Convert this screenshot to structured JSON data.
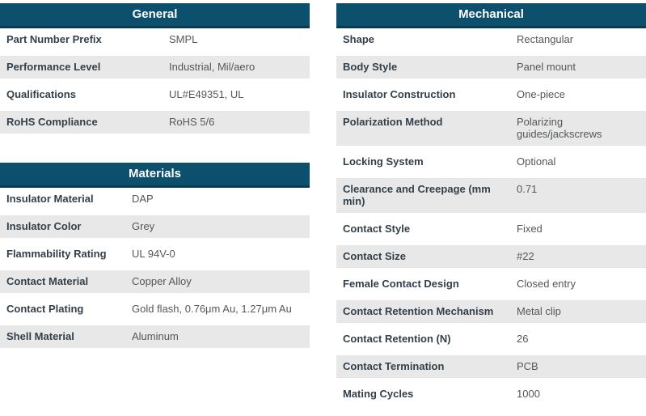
{
  "colors": {
    "header_bg": "#0c506e",
    "header_border": "#083b52",
    "row_stripe": "#e8e8e8",
    "label_text": "#333f49",
    "value_text": "#54575a",
    "header_text": "#ffffff"
  },
  "tables": [
    {
      "title": "General",
      "rows": [
        {
          "label": "Part Number Prefix",
          "value": "SMPL"
        },
        {
          "label": "Performance Level",
          "value": "Industrial, Mil/aero"
        },
        {
          "label": "Qualifications",
          "value": "UL#E49351, UL"
        },
        {
          "label": "RoHS Compliance",
          "value": "RoHS 5/6"
        }
      ]
    },
    {
      "title": "Materials",
      "rows": [
        {
          "label": "Insulator Material",
          "value": "DAP"
        },
        {
          "label": "Insulator Color",
          "value": "Grey"
        },
        {
          "label": "Flammability Rating",
          "value": "UL 94V-0"
        },
        {
          "label": "Contact Material",
          "value": "Copper Alloy"
        },
        {
          "label": "Contact Plating",
          "value": "Gold flash, 0.76μm Au, 1.27μm Au"
        },
        {
          "label": "Shell Material",
          "value": "Aluminum"
        }
      ]
    },
    {
      "title": "Mechanical",
      "rows": [
        {
          "label": "Shape",
          "value": "Rectangular"
        },
        {
          "label": "Body Style",
          "value": "Panel mount"
        },
        {
          "label": "Insulator Construction",
          "value": "One-piece"
        },
        {
          "label": "Polarization Method",
          "value": "Polarizing guides/jackscrews"
        },
        {
          "label": "Locking System",
          "value": "Optional"
        },
        {
          "label": "Clearance and Creepage (mm min)",
          "value": "0.71"
        },
        {
          "label": "Contact Style",
          "value": "Fixed"
        },
        {
          "label": "Contact Size",
          "value": "#22"
        },
        {
          "label": "Female Contact Design",
          "value": "Closed entry"
        },
        {
          "label": "Contact Retention Mechanism",
          "value": "Metal clip"
        },
        {
          "label": "Contact Retention (N)",
          "value": "26"
        },
        {
          "label": "Contact Termination",
          "value": "PCB"
        },
        {
          "label": "Mating Cycles",
          "value": "1000"
        }
      ]
    }
  ]
}
